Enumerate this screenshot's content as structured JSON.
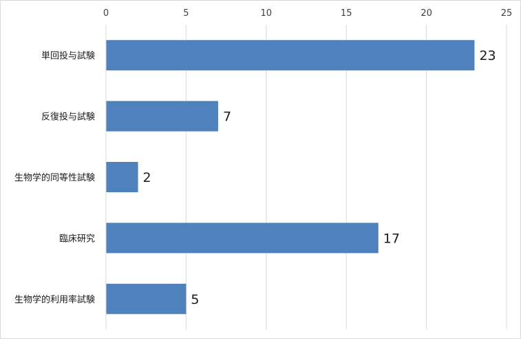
{
  "chart_data": {
    "type": "bar",
    "orientation": "horizontal",
    "categories": [
      "単回投与試験",
      "反復投与試験",
      "生物学的同等性試験",
      "臨床研究",
      "生物学的利用率試験"
    ],
    "values": [
      23,
      7,
      2,
      17,
      5
    ],
    "data_labels": [
      "23",
      "7",
      "2",
      "17",
      "5"
    ],
    "xlim": [
      0,
      25
    ],
    "x_ticks": [
      0,
      5,
      10,
      15,
      20,
      25
    ],
    "x_tick_labels": [
      "0",
      "5",
      "10",
      "15",
      "20",
      "25"
    ],
    "x_axis_position": "top",
    "grid": true,
    "legend": "none",
    "bar_color": "#4f81bd",
    "grid_color": "#d9d9d9"
  }
}
